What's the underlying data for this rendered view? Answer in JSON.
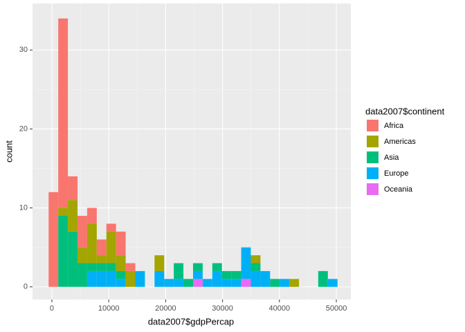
{
  "chart_data": {
    "type": "histogram",
    "x_label": "data2007$gdpPercap",
    "y_label": "count",
    "legend_title": "data2007$continent",
    "bins": [
      -569,
      1123,
      2816,
      4508,
      6201,
      7893,
      9585,
      11278,
      12970,
      14663,
      16355,
      18047,
      19740,
      21432,
      23125,
      24817,
      26509,
      28202,
      29894,
      31587,
      33279,
      34971,
      36664,
      38356,
      40049,
      41741,
      43433,
      45126,
      46818,
      48511,
      50203
    ],
    "stacked": true,
    "series": [
      {
        "name": "Africa",
        "color": "#F8766D",
        "values": [
          12,
          24,
          3,
          4,
          2,
          2,
          1,
          3,
          1,
          0,
          0,
          0,
          0,
          0,
          0,
          0,
          0,
          0,
          0,
          0,
          0,
          0,
          0,
          0,
          0,
          0,
          0,
          0,
          0,
          0
        ]
      },
      {
        "name": "Americas",
        "color": "#A3A500",
        "values": [
          0,
          1,
          4,
          2,
          5,
          1,
          4,
          2,
          2,
          0,
          0,
          2,
          0,
          0,
          0,
          0,
          0,
          0,
          0,
          0,
          0,
          1,
          0,
          0,
          0,
          1,
          0,
          0,
          0,
          0
        ]
      },
      {
        "name": "Asia",
        "color": "#00BF7D",
        "values": [
          0,
          9,
          7,
          3,
          1,
          1,
          1,
          1,
          0,
          0,
          0,
          0,
          0,
          2,
          1,
          1,
          0,
          1,
          1,
          1,
          0,
          1,
          0,
          1,
          0,
          0,
          0,
          0,
          2,
          0
        ]
      },
      {
        "name": "Europe",
        "color": "#00B0F6",
        "values": [
          0,
          0,
          0,
          0,
          2,
          2,
          2,
          1,
          0,
          2,
          0,
          2,
          1,
          1,
          0,
          1,
          1,
          2,
          1,
          1,
          4,
          2,
          2,
          0,
          1,
          0,
          0,
          0,
          0,
          1
        ]
      },
      {
        "name": "Oceania",
        "color": "#E76BF3",
        "values": [
          0,
          0,
          0,
          0,
          0,
          0,
          0,
          0,
          0,
          0,
          0,
          0,
          0,
          0,
          0,
          1,
          0,
          0,
          0,
          0,
          1,
          0,
          0,
          0,
          0,
          0,
          0,
          0,
          0,
          0
        ]
      }
    ],
    "xlim": [
      -3400,
      52550
    ],
    "ylim": [
      -1.6,
      35.9
    ],
    "xticks": [
      0,
      10000,
      20000,
      30000,
      40000,
      50000
    ],
    "yticks": [
      0,
      10,
      20,
      30
    ],
    "grid": true
  }
}
